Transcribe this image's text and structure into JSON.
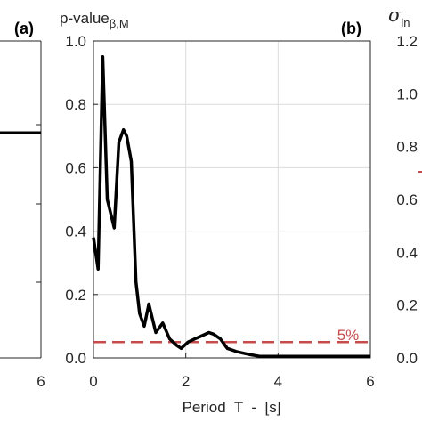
{
  "colors": {
    "line": "#000000",
    "threshold": "#c84b4b",
    "axis": "#262626",
    "grid": "#dcdcdc"
  },
  "chart_data": [
    {
      "panel": "(a)",
      "type": "line",
      "xlim": [
        0,
        6
      ],
      "x_ticks": [
        "6"
      ],
      "series": [
        {
          "x": [
            0,
            6
          ],
          "y": [
            0.72,
            0.72
          ]
        }
      ]
    },
    {
      "panel": "(b)",
      "type": "line",
      "title": "p-value",
      "title_subscript": "β,M",
      "xlabel": "Period  T  -  [s]",
      "xlim": [
        0,
        6
      ],
      "ylim": [
        0,
        1.0
      ],
      "x_ticks": [
        "0",
        "2",
        "4",
        "6"
      ],
      "y_ticks": [
        "0.0",
        "0.2",
        "0.4",
        "0.6",
        "0.8",
        "1.0"
      ],
      "grid": true,
      "series": [
        {
          "x": [
            0.0,
            0.1,
            0.2,
            0.3,
            0.45,
            0.55,
            0.65,
            0.72,
            0.82,
            0.92,
            1.0,
            1.1,
            1.2,
            1.35,
            1.5,
            1.65,
            1.8,
            1.9,
            2.05,
            2.2,
            2.35,
            2.5,
            2.6,
            2.75,
            2.9,
            3.1,
            3.4,
            3.6,
            4.0,
            5.0,
            6.0
          ],
          "y": [
            0.38,
            0.28,
            0.95,
            0.5,
            0.41,
            0.68,
            0.72,
            0.7,
            0.62,
            0.24,
            0.14,
            0.1,
            0.17,
            0.08,
            0.11,
            0.06,
            0.04,
            0.03,
            0.05,
            0.06,
            0.07,
            0.08,
            0.075,
            0.06,
            0.03,
            0.02,
            0.01,
            0.005,
            0.005,
            0.005,
            0.005
          ]
        }
      ],
      "threshold": {
        "y": 0.05,
        "label": "5%"
      }
    },
    {
      "panel": "",
      "type": "line",
      "title": "σ",
      "title_subscript": "ln",
      "ylim": [
        0,
        1.2
      ],
      "y_ticks": [
        "0.0",
        "0.2",
        "0.4",
        "0.6",
        "0.8",
        "1.0",
        "1.2"
      ]
    }
  ]
}
